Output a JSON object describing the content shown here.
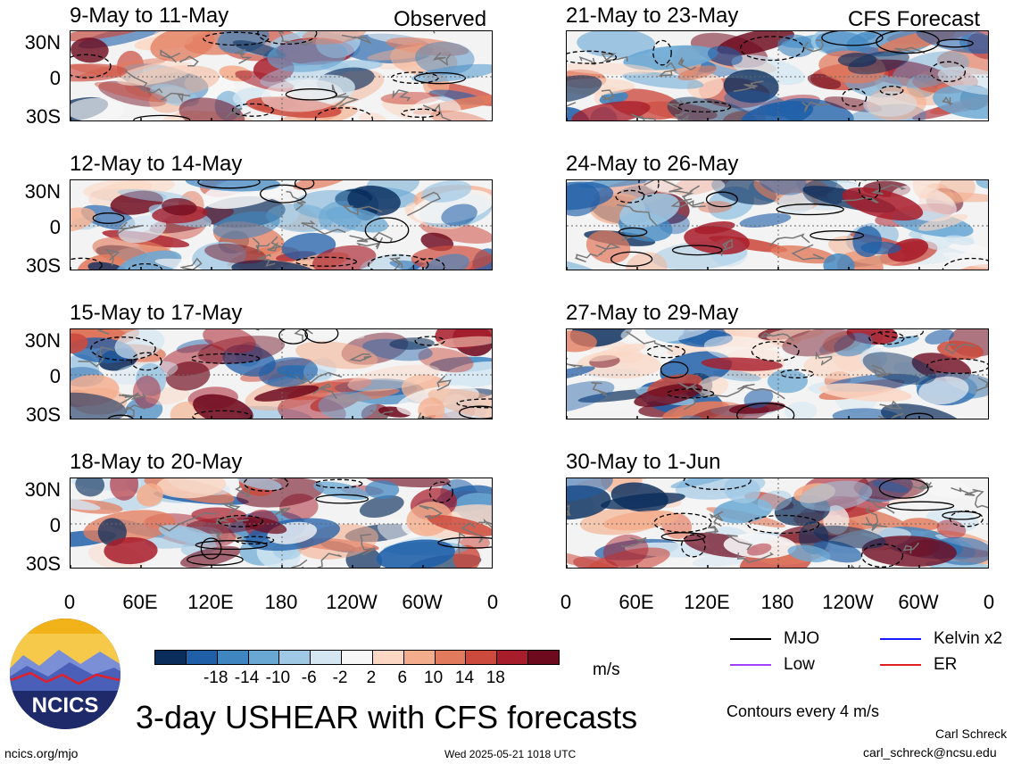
{
  "panels_left": [
    {
      "title": "9-May to 11-May",
      "tag": "Observed"
    },
    {
      "title": "12-May to 14-May",
      "tag": ""
    },
    {
      "title": "15-May to 17-May",
      "tag": ""
    },
    {
      "title": "18-May to 20-May",
      "tag": ""
    }
  ],
  "panels_right": [
    {
      "title": "21-May to 23-May",
      "tag": "CFS Forecast"
    },
    {
      "title": "24-May to 26-May",
      "tag": ""
    },
    {
      "title": "27-May to 29-May",
      "tag": ""
    },
    {
      "title": "30-May to 1-Jun",
      "tag": ""
    }
  ],
  "y_ticks": [
    "30N",
    "0",
    "30S"
  ],
  "x_ticks": [
    "0",
    "60E",
    "120E",
    "180",
    "120W",
    "60W",
    "0"
  ],
  "colorbar": {
    "colors": [
      "#0a2d5c",
      "#1f5fa8",
      "#3f86c1",
      "#6aa8d4",
      "#9fc8e4",
      "#d3e6f2",
      "#f7f7f7",
      "#fbd7c4",
      "#f4ad8c",
      "#e27b5e",
      "#cc4a3d",
      "#a81d2b",
      "#6e0a1e"
    ],
    "labels": [
      "-18",
      "-14",
      "-10",
      "-6",
      "-2",
      "2",
      "6",
      "10",
      "14",
      "18"
    ],
    "unit": "m/s"
  },
  "legend": {
    "items": [
      {
        "label": "MJO",
        "color": "#000000"
      },
      {
        "label": "Kelvin x2",
        "color": "#1a1aff"
      },
      {
        "label": "Low",
        "color": "#a040ff"
      },
      {
        "label": "ER",
        "color": "#e02020"
      }
    ],
    "note": "Contours every 4 m/s"
  },
  "logo": {
    "text": "NCICS"
  },
  "main_title": "3-day USHEAR with CFS forecasts",
  "footer": {
    "left": "ncics.org/mjo",
    "center": "Wed 2025-05-21 1018 UTC",
    "author": "Carl Schreck",
    "email": "carl_schreck@ncsu.edu"
  }
}
